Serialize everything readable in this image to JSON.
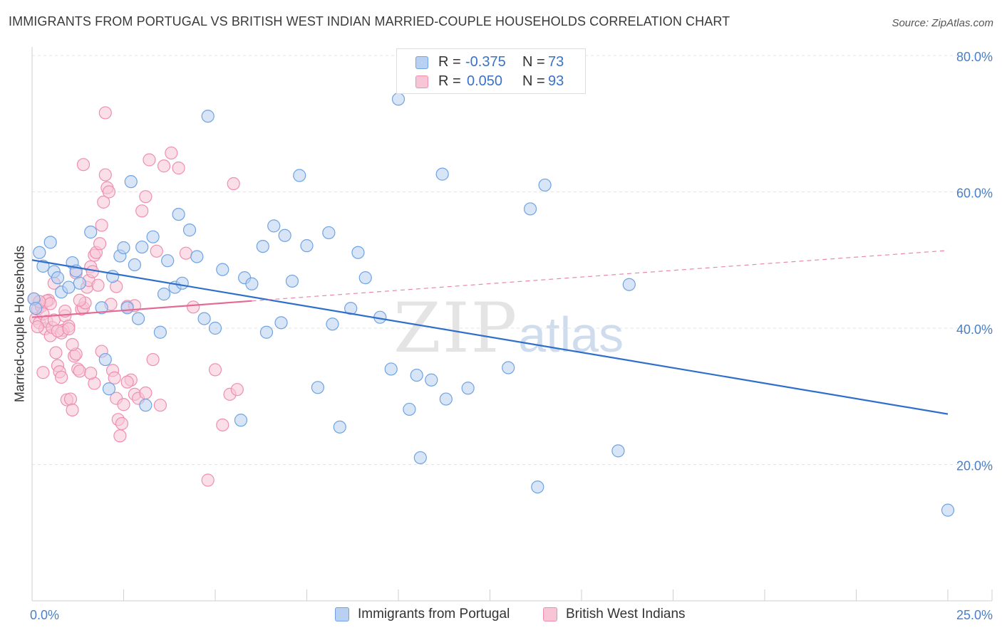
{
  "title": "IMMIGRANTS FROM PORTUGAL VS BRITISH WEST INDIAN MARRIED-COUPLE HOUSEHOLDS CORRELATION CHART",
  "source": "Source: ZipAtlas.com",
  "watermark": {
    "zip": "ZIP",
    "atlas": "atlas"
  },
  "colors": {
    "blue": "#6fa3e3",
    "blue_fill": "#b8d0f1",
    "blue_line": "#2f6fcb",
    "pink": "#ee8fb0",
    "pink_fill": "#f7c5d6",
    "pink_line": "#e46a94",
    "axis_text": "#4a7fc6"
  },
  "stats": {
    "blue": {
      "r_label": "R =",
      "r_value": "-0.375",
      "n_label": "N =",
      "n_value": "73"
    },
    "pink": {
      "r_label": "R =",
      "r_value": "0.050",
      "n_label": "N =",
      "n_value": "93"
    }
  },
  "legend": {
    "blue": "Immigrants from Portugal",
    "pink": "British West Indians"
  },
  "chart_data": {
    "type": "scatter",
    "title": "IMMIGRANTS FROM PORTUGAL VS BRITISH WEST INDIAN MARRIED-COUPLE HOUSEHOLDS CORRELATION CHART",
    "xlabel": "",
    "ylabel": "Married-couple Households",
    "xlim": [
      0,
      25
    ],
    "ylim": [
      0,
      80
    ],
    "x_tick_labels": [
      "0.0%",
      "25.0%"
    ],
    "y_ticks": [
      20,
      40,
      60,
      80
    ],
    "y_tick_labels": [
      "20.0%",
      "40.0%",
      "60.0%",
      "80.0%"
    ],
    "series": [
      {
        "name": "Immigrants from Portugal",
        "color": "blue",
        "trend": {
          "x": [
            0,
            25
          ],
          "y": [
            50.0,
            27.4
          ],
          "style": "solid"
        },
        "points": [
          [
            0.2,
            51.1
          ],
          [
            0.3,
            49.1
          ],
          [
            0.5,
            52.6
          ],
          [
            0.6,
            48.3
          ],
          [
            0.7,
            47.4
          ],
          [
            0.8,
            45.3
          ],
          [
            1.0,
            46.0
          ],
          [
            1.1,
            49.6
          ],
          [
            1.2,
            48.4
          ],
          [
            1.3,
            46.6
          ],
          [
            1.6,
            54.1
          ],
          [
            1.9,
            43.0
          ],
          [
            2.0,
            35.4
          ],
          [
            2.1,
            31.1
          ],
          [
            2.2,
            47.6
          ],
          [
            2.4,
            50.6
          ],
          [
            2.5,
            51.8
          ],
          [
            2.6,
            43.0
          ],
          [
            2.7,
            61.5
          ],
          [
            2.8,
            49.3
          ],
          [
            2.9,
            41.4
          ],
          [
            3.0,
            51.9
          ],
          [
            3.1,
            28.7
          ],
          [
            3.3,
            53.4
          ],
          [
            3.5,
            39.4
          ],
          [
            3.6,
            45.0
          ],
          [
            3.7,
            49.9
          ],
          [
            3.9,
            46.0
          ],
          [
            4.0,
            56.7
          ],
          [
            4.1,
            46.6
          ],
          [
            4.3,
            54.4
          ],
          [
            4.5,
            50.5
          ],
          [
            4.7,
            41.4
          ],
          [
            4.8,
            71.1
          ],
          [
            5.0,
            40.0
          ],
          [
            5.2,
            48.6
          ],
          [
            5.7,
            26.5
          ],
          [
            5.8,
            47.4
          ],
          [
            6.0,
            46.5
          ],
          [
            6.3,
            52.0
          ],
          [
            6.4,
            39.4
          ],
          [
            6.6,
            55.0
          ],
          [
            6.8,
            40.8
          ],
          [
            6.9,
            53.6
          ],
          [
            7.1,
            46.9
          ],
          [
            7.3,
            62.4
          ],
          [
            7.5,
            52.1
          ],
          [
            7.8,
            31.3
          ],
          [
            8.1,
            54.0
          ],
          [
            8.2,
            40.6
          ],
          [
            8.4,
            25.5
          ],
          [
            8.7,
            42.9
          ],
          [
            8.9,
            51.1
          ],
          [
            9.1,
            47.4
          ],
          [
            9.5,
            41.6
          ],
          [
            9.8,
            34.0
          ],
          [
            10.0,
            73.6
          ],
          [
            10.3,
            28.1
          ],
          [
            10.5,
            33.1
          ],
          [
            10.6,
            21.0
          ],
          [
            10.9,
            32.4
          ],
          [
            11.2,
            62.6
          ],
          [
            11.3,
            29.6
          ],
          [
            11.9,
            31.2
          ],
          [
            13.0,
            34.2
          ],
          [
            13.6,
            57.5
          ],
          [
            13.8,
            16.7
          ],
          [
            14.0,
            61.0
          ],
          [
            16.0,
            22.0
          ],
          [
            16.3,
            46.4
          ],
          [
            25.0,
            13.3
          ],
          [
            0.05,
            44.3
          ],
          [
            0.1,
            42.9
          ]
        ]
      },
      {
        "name": "British West Indians",
        "color": "pink",
        "trend": {
          "x": [
            0,
            6
          ],
          "y": [
            41.6,
            44.0
          ],
          "style": "solid"
        },
        "trend_extension": {
          "x": [
            6,
            25
          ],
          "y": [
            44.0,
            51.4
          ],
          "style": "dashed"
        },
        "points": [
          [
            0.05,
            44.3
          ],
          [
            0.1,
            41.4
          ],
          [
            0.15,
            42.8
          ],
          [
            0.2,
            40.8
          ],
          [
            0.25,
            43.2
          ],
          [
            0.3,
            42.1
          ],
          [
            0.35,
            39.9
          ],
          [
            0.4,
            41.0
          ],
          [
            0.45,
            44.1
          ],
          [
            0.5,
            38.9
          ],
          [
            0.55,
            40.1
          ],
          [
            0.6,
            41.2
          ],
          [
            0.65,
            36.4
          ],
          [
            0.7,
            34.5
          ],
          [
            0.75,
            33.6
          ],
          [
            0.8,
            32.8
          ],
          [
            0.85,
            39.7
          ],
          [
            0.9,
            41.8
          ],
          [
            0.95,
            29.5
          ],
          [
            1.0,
            40.3
          ],
          [
            1.05,
            29.6
          ],
          [
            1.1,
            28.0
          ],
          [
            1.15,
            35.9
          ],
          [
            1.2,
            36.2
          ],
          [
            1.25,
            34.0
          ],
          [
            1.3,
            33.7
          ],
          [
            1.35,
            42.8
          ],
          [
            1.4,
            43.0
          ],
          [
            1.45,
            43.7
          ],
          [
            1.5,
            46.0
          ],
          [
            1.55,
            47.0
          ],
          [
            1.6,
            49.0
          ],
          [
            1.65,
            48.3
          ],
          [
            1.7,
            50.7
          ],
          [
            1.75,
            51.1
          ],
          [
            1.8,
            46.3
          ],
          [
            1.85,
            52.4
          ],
          [
            1.9,
            55.1
          ],
          [
            1.95,
            58.5
          ],
          [
            2.0,
            62.5
          ],
          [
            2.05,
            60.6
          ],
          [
            2.1,
            60.0
          ],
          [
            2.15,
            43.5
          ],
          [
            2.2,
            33.8
          ],
          [
            2.25,
            32.7
          ],
          [
            2.3,
            29.7
          ],
          [
            2.35,
            26.6
          ],
          [
            2.4,
            24.2
          ],
          [
            2.45,
            26.0
          ],
          [
            2.5,
            28.8
          ],
          [
            2.6,
            43.2
          ],
          [
            2.7,
            32.4
          ],
          [
            2.8,
            30.3
          ],
          [
            2.9,
            29.7
          ],
          [
            3.0,
            57.2
          ],
          [
            3.1,
            59.3
          ],
          [
            3.2,
            64.7
          ],
          [
            3.3,
            35.4
          ],
          [
            3.4,
            51.3
          ],
          [
            3.5,
            28.7
          ],
          [
            3.6,
            63.8
          ],
          [
            3.8,
            65.7
          ],
          [
            4.0,
            63.5
          ],
          [
            4.2,
            51.0
          ],
          [
            4.4,
            43.1
          ],
          [
            5.0,
            33.9
          ],
          [
            5.2,
            25.8
          ],
          [
            5.4,
            30.3
          ],
          [
            5.6,
            31.0
          ],
          [
            5.5,
            61.2
          ],
          [
            4.8,
            17.7
          ],
          [
            2.0,
            71.6
          ],
          [
            1.4,
            64.0
          ],
          [
            0.8,
            39.3
          ],
          [
            0.6,
            46.6
          ],
          [
            0.9,
            42.5
          ],
          [
            1.3,
            44.1
          ],
          [
            1.7,
            31.9
          ],
          [
            1.1,
            37.6
          ],
          [
            0.4,
            44.0
          ],
          [
            0.3,
            33.5
          ],
          [
            0.5,
            43.6
          ],
          [
            2.3,
            46.1
          ],
          [
            2.8,
            43.3
          ],
          [
            1.6,
            33.4
          ],
          [
            1.2,
            48.1
          ],
          [
            0.7,
            39.6
          ],
          [
            1.9,
            36.6
          ],
          [
            2.6,
            32.1
          ],
          [
            3.1,
            30.5
          ],
          [
            1.0,
            39.9
          ],
          [
            0.2,
            43.9
          ],
          [
            0.15,
            40.2
          ]
        ]
      }
    ]
  }
}
